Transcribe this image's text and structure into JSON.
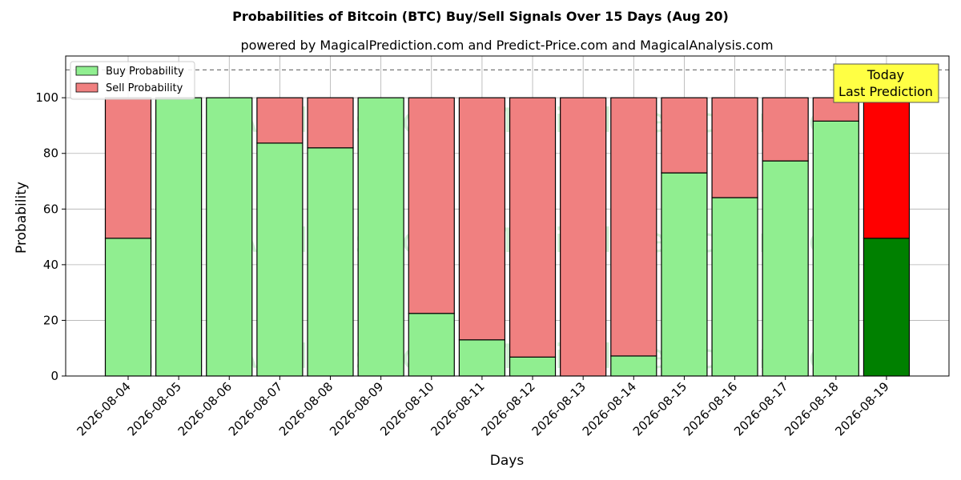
{
  "chart_data": {
    "type": "bar",
    "stacked": true,
    "title": "Probabilities of Bitcoin (BTC) Buy/Sell Signals Over 15 Days (Aug 20)",
    "subtitle": "powered by MagicalPrediction.com and Predict-Price.com and MagicalAnalysis.com",
    "xlabel": "Days",
    "ylabel": "Probability",
    "ylim": [
      0,
      115
    ],
    "yticks": [
      0,
      20,
      40,
      60,
      80,
      100
    ],
    "grid": true,
    "legend_position": "top-left",
    "reference_line": 110,
    "categories": [
      "2026-08-04",
      "2026-08-05",
      "2026-08-06",
      "2026-08-07",
      "2026-08-08",
      "2026-08-09",
      "2026-08-10",
      "2026-08-11",
      "2026-08-12",
      "2026-08-13",
      "2026-08-14",
      "2026-08-15",
      "2026-08-16",
      "2026-08-17",
      "2026-08-18",
      "2026-08-19"
    ],
    "series": [
      {
        "name": "Buy Probability",
        "color": "#90ee90",
        "highlight_color": "#008000",
        "values": [
          49.5,
          100,
          100,
          83.7,
          82,
          100,
          22.5,
          13,
          6.8,
          0,
          7.2,
          73,
          64.1,
          77.3,
          91.6,
          49.5
        ]
      },
      {
        "name": "Sell Probability",
        "color": "#f08080",
        "highlight_color": "#ff0000",
        "values": [
          50.5,
          0,
          0,
          16.3,
          18,
          0,
          77.5,
          87,
          93.2,
          100,
          92.8,
          27,
          35.9,
          22.7,
          8.4,
          50.5
        ]
      }
    ],
    "highlight_index": 15,
    "annotation": {
      "text": [
        "Today",
        "Last Prediction"
      ],
      "background": "#ffff44"
    },
    "watermarks": [
      "MagicalAnalysis.com",
      "MagicalPrediction.com"
    ]
  }
}
